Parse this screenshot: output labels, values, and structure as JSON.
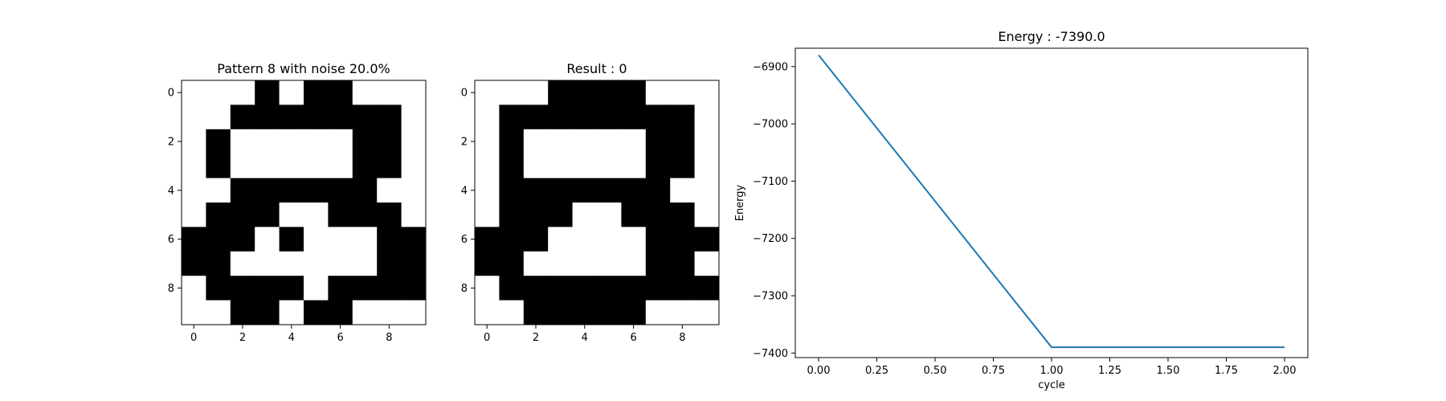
{
  "chart_data": [
    {
      "type": "heatmap",
      "title": "Pattern 8 with noise 20.0%",
      "colors": {
        "1": "#000000",
        "0": "#ffffff"
      },
      "xticks": [
        "0",
        "2",
        "4",
        "6",
        "8"
      ],
      "yticks": [
        "0",
        "2",
        "4",
        "6",
        "8"
      ],
      "grid": [
        [
          0,
          0,
          0,
          1,
          0,
          1,
          1,
          0,
          0,
          0
        ],
        [
          0,
          0,
          1,
          1,
          1,
          1,
          1,
          1,
          1,
          0
        ],
        [
          0,
          1,
          0,
          0,
          0,
          0,
          0,
          1,
          1,
          0
        ],
        [
          0,
          1,
          0,
          0,
          0,
          0,
          0,
          1,
          1,
          0
        ],
        [
          0,
          0,
          1,
          1,
          1,
          1,
          1,
          1,
          0,
          0
        ],
        [
          0,
          1,
          1,
          1,
          0,
          0,
          1,
          1,
          1,
          0
        ],
        [
          1,
          1,
          1,
          0,
          1,
          0,
          0,
          0,
          1,
          1
        ],
        [
          1,
          1,
          0,
          0,
          0,
          0,
          0,
          0,
          1,
          1
        ],
        [
          0,
          1,
          1,
          1,
          1,
          0,
          1,
          1,
          1,
          1
        ],
        [
          0,
          0,
          1,
          1,
          0,
          1,
          1,
          0,
          0,
          0
        ]
      ]
    },
    {
      "type": "heatmap",
      "title": "Result : 0",
      "colors": {
        "1": "#000000",
        "0": "#ffffff"
      },
      "xticks": [
        "0",
        "2",
        "4",
        "6",
        "8"
      ],
      "yticks": [
        "0",
        "2",
        "4",
        "6",
        "8"
      ],
      "grid": [
        [
          0,
          0,
          0,
          1,
          1,
          1,
          1,
          0,
          0,
          0
        ],
        [
          0,
          1,
          1,
          1,
          1,
          1,
          1,
          1,
          1,
          0
        ],
        [
          0,
          1,
          0,
          0,
          0,
          0,
          0,
          1,
          1,
          0
        ],
        [
          0,
          1,
          0,
          0,
          0,
          0,
          0,
          1,
          1,
          0
        ],
        [
          0,
          1,
          1,
          1,
          1,
          1,
          1,
          1,
          0,
          0
        ],
        [
          0,
          1,
          1,
          1,
          0,
          0,
          1,
          1,
          1,
          0
        ],
        [
          1,
          1,
          1,
          0,
          0,
          0,
          0,
          1,
          1,
          1
        ],
        [
          1,
          1,
          0,
          0,
          0,
          0,
          0,
          1,
          1,
          0
        ],
        [
          0,
          1,
          1,
          1,
          1,
          1,
          1,
          1,
          1,
          1
        ],
        [
          0,
          0,
          1,
          1,
          1,
          1,
          1,
          0,
          0,
          0
        ]
      ]
    },
    {
      "type": "line",
      "title": "Energy : -7390.0",
      "xlabel": "cycle",
      "ylabel": "Energy",
      "color": "#1f77b4",
      "xlim": [
        -0.1,
        2.1
      ],
      "ylim": [
        -7408,
        -6868
      ],
      "xticks": [
        0.0,
        0.25,
        0.5,
        0.75,
        1.0,
        1.25,
        1.5,
        1.75,
        2.0
      ],
      "xtick_labels": [
        "0.00",
        "0.25",
        "0.50",
        "0.75",
        "1.00",
        "1.25",
        "1.50",
        "1.75",
        "2.00"
      ],
      "yticks": [
        -6900,
        -7000,
        -7100,
        -7200,
        -7300,
        -7400
      ],
      "ytick_labels": [
        "−6900",
        "−7000",
        "−7100",
        "−7200",
        "−7300",
        "−7400"
      ],
      "x": [
        0,
        1,
        2
      ],
      "y": [
        -6880,
        -7390,
        -7390
      ]
    }
  ]
}
